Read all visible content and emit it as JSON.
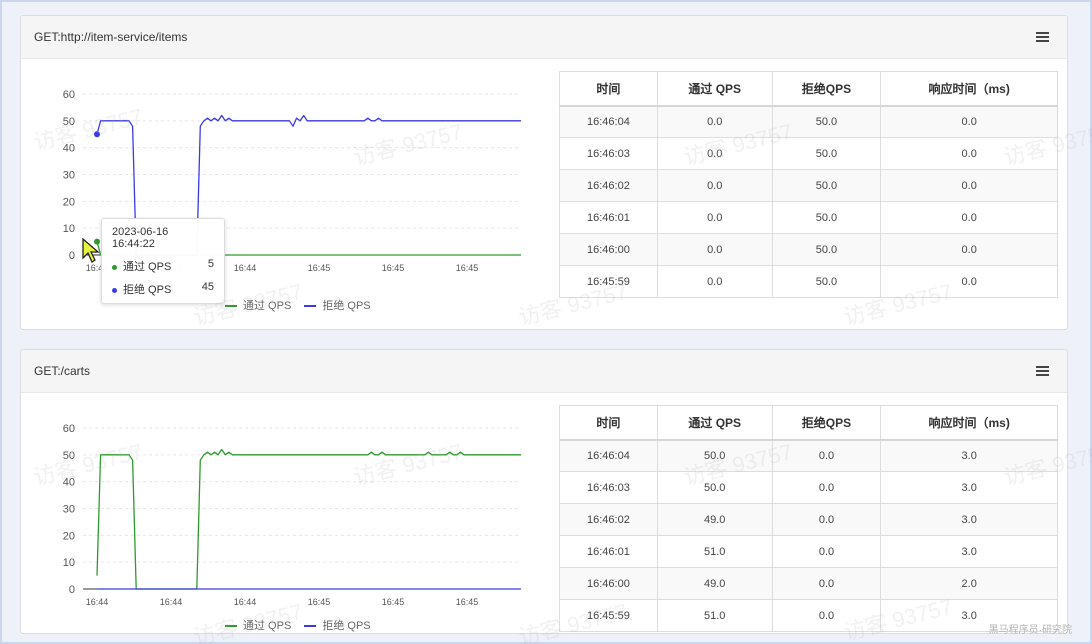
{
  "colors": {
    "pass": "#2f9a2f",
    "reject": "#3a3ae6",
    "header_bg": "#f5f5f5"
  },
  "panels": [
    {
      "title": "GET:http://item-service/items",
      "chart_data": {
        "type": "line",
        "ylim": [
          0,
          60
        ],
        "y_ticks": [
          "60",
          "50",
          "40",
          "30",
          "20",
          "10",
          "0"
        ],
        "x_tick_labels": [
          "16:44",
          "16:44",
          "16:44",
          "16:45",
          "16:45",
          "16:45"
        ],
        "series": [
          {
            "name": "通过 QPS",
            "values": [
              5,
              0,
              0,
              0,
              0,
              0,
              0,
              0,
              0,
              0,
              0,
              0,
              0,
              0,
              0,
              0,
              0,
              0,
              0,
              0,
              0,
              0,
              0,
              0,
              0,
              0,
              0,
              0,
              0,
              0,
              0,
              0,
              0,
              0,
              0,
              0,
              0,
              0,
              0,
              0,
              0,
              0,
              0,
              0,
              0,
              0,
              0,
              0,
              0,
              0,
              0,
              0,
              0,
              0,
              0,
              0,
              0,
              0,
              0,
              0,
              0,
              0,
              0,
              0,
              0,
              0,
              0,
              0,
              0,
              0,
              0,
              0,
              0,
              0,
              0,
              0,
              0,
              0,
              0,
              0,
              0,
              0,
              0,
              0,
              0,
              0,
              0,
              0,
              0,
              0,
              0,
              0,
              0,
              0,
              0,
              0,
              0,
              0,
              0,
              0,
              0,
              0,
              0,
              0,
              0,
              0,
              0,
              0,
              0,
              0,
              0,
              0,
              0,
              0,
              0,
              0,
              0,
              0,
              0,
              0
            ]
          },
          {
            "name": "拒绝 QPS",
            "values": [
              45,
              50,
              50,
              50,
              50,
              50,
              50,
              50,
              50,
              50,
              48,
              0,
              0,
              0,
              0,
              0,
              0,
              0,
              0,
              0,
              0,
              0,
              0,
              0,
              0,
              0,
              0,
              0,
              0,
              48,
              50,
              51,
              50,
              51,
              50,
              52,
              50,
              51,
              50,
              50,
              50,
              50,
              50,
              50,
              50,
              50,
              50,
              50,
              50,
              50,
              50,
              50,
              50,
              50,
              50,
              48,
              51,
              50,
              52,
              50,
              50,
              50,
              50,
              50,
              50,
              50,
              50,
              50,
              50,
              50,
              50,
              50,
              50,
              50,
              50,
              50,
              51,
              50,
              50,
              51,
              50,
              50,
              50,
              50,
              50,
              50,
              50,
              50,
              50,
              50,
              50,
              50,
              50,
              50,
              50,
              50,
              50,
              50,
              50,
              50,
              50,
              50,
              50,
              50,
              50,
              50,
              50,
              50,
              50,
              50,
              50,
              50,
              50,
              50,
              50,
              50,
              50,
              50,
              50,
              50
            ]
          }
        ]
      },
      "legend": {
        "pass": "通过 QPS",
        "reject": "拒绝 QPS"
      },
      "tooltip": {
        "time": "2023-06-16 16:44:22",
        "pass_label": "通过 QPS",
        "pass_value": "5",
        "reject_label": "拒绝 QPS",
        "reject_value": "45"
      },
      "table": {
        "headers": [
          "时间",
          "通过 QPS",
          "拒绝QPS",
          "响应时间（ms)"
        ],
        "rows": [
          [
            "16:46:04",
            "0.0",
            "50.0",
            "0.0"
          ],
          [
            "16:46:03",
            "0.0",
            "50.0",
            "0.0"
          ],
          [
            "16:46:02",
            "0.0",
            "50.0",
            "0.0"
          ],
          [
            "16:46:01",
            "0.0",
            "50.0",
            "0.0"
          ],
          [
            "16:46:00",
            "0.0",
            "50.0",
            "0.0"
          ],
          [
            "16:45:59",
            "0.0",
            "50.0",
            "0.0"
          ]
        ]
      }
    },
    {
      "title": "GET:/carts",
      "chart_data": {
        "type": "line",
        "ylim": [
          0,
          60
        ],
        "y_ticks": [
          "60",
          "50",
          "40",
          "30",
          "20",
          "10",
          "0"
        ],
        "x_tick_labels": [
          "16:44",
          "16:44",
          "16:44",
          "16:45",
          "16:45",
          "16:45"
        ],
        "series": [
          {
            "name": "通过 QPS",
            "values": [
              5,
              50,
              50,
              50,
              50,
              50,
              50,
              50,
              50,
              50,
              48,
              0,
              0,
              0,
              0,
              0,
              0,
              0,
              0,
              0,
              0,
              0,
              0,
              0,
              0,
              0,
              0,
              0,
              0,
              48,
              50,
              51,
              50,
              51,
              50,
              52,
              50,
              51,
              50,
              50,
              50,
              50,
              50,
              50,
              50,
              50,
              50,
              50,
              50,
              50,
              50,
              50,
              50,
              50,
              50,
              50,
              50,
              50,
              50,
              50,
              50,
              50,
              50,
              50,
              50,
              50,
              50,
              50,
              50,
              50,
              50,
              50,
              50,
              50,
              50,
              50,
              50,
              51,
              50,
              50,
              51,
              50,
              50,
              50,
              50,
              50,
              50,
              50,
              50,
              50,
              50,
              50,
              50,
              51,
              50,
              50,
              50,
              50,
              50,
              51,
              50,
              50,
              51,
              50,
              50,
              50,
              50,
              50,
              50,
              50,
              50,
              50,
              50,
              50,
              50,
              50,
              50,
              50,
              50,
              50
            ]
          },
          {
            "name": "拒绝 QPS",
            "values": [
              0,
              0,
              0,
              0,
              0,
              0,
              0,
              0,
              0,
              0,
              0,
              0,
              0,
              0,
              0,
              0,
              0,
              0,
              0,
              0,
              0,
              0,
              0,
              0,
              0,
              0,
              0,
              0,
              0,
              0,
              0,
              0,
              0,
              0,
              0,
              0,
              0,
              0,
              0,
              0,
              0,
              0,
              0,
              0,
              0,
              0,
              0,
              0,
              0,
              0,
              0,
              0,
              0,
              0,
              0,
              0,
              0,
              0,
              0,
              0,
              0,
              0,
              0,
              0,
              0,
              0,
              0,
              0,
              0,
              0,
              0,
              0,
              0,
              0,
              0,
              0,
              0,
              0,
              0,
              0,
              0,
              0,
              0,
              0,
              0,
              0,
              0,
              0,
              0,
              0,
              0,
              0,
              0,
              0,
              0,
              0,
              0,
              0,
              0,
              0,
              0,
              0,
              0,
              0,
              0,
              0,
              0,
              0,
              0,
              0,
              0,
              0,
              0,
              0,
              0,
              0,
              0,
              0,
              0,
              0
            ]
          }
        ]
      },
      "legend": {
        "pass": "通过 QPS",
        "reject": "拒绝 QPS"
      },
      "table": {
        "headers": [
          "时间",
          "通过 QPS",
          "拒绝QPS",
          "响应时间（ms)"
        ],
        "rows": [
          [
            "16:46:04",
            "50.0",
            "0.0",
            "3.0"
          ],
          [
            "16:46:03",
            "50.0",
            "0.0",
            "3.0"
          ],
          [
            "16:46:02",
            "49.0",
            "0.0",
            "3.0"
          ],
          [
            "16:46:01",
            "51.0",
            "0.0",
            "3.0"
          ],
          [
            "16:46:00",
            "49.0",
            "0.0",
            "2.0"
          ],
          [
            "16:45:59",
            "51.0",
            "0.0",
            "3.0"
          ]
        ]
      }
    }
  ],
  "watermark_text": "访客 93757",
  "corner_text": "黑马程序员·研究院"
}
